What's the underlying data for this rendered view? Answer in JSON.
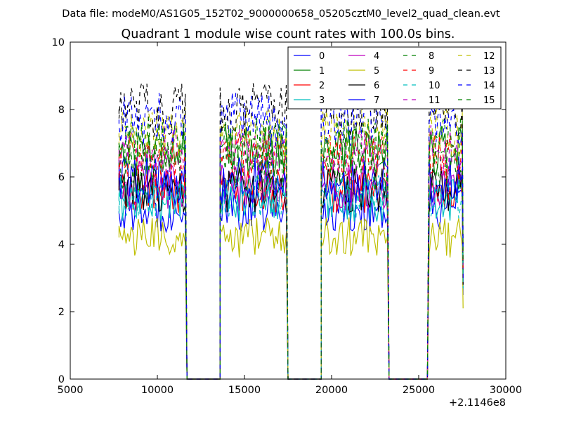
{
  "header": {
    "datafile_label": "Data file: modeM0/AS1G05_152T02_9000000658_05205cztM0_level2_quad_clean.evt"
  },
  "chart_data": {
    "type": "line",
    "title": "Quadrant 1 module wise count rates with 100.0s bins.",
    "xlabel": "",
    "ylabel": "",
    "x_offset_label": "+2.1146e8",
    "xlim": [
      5000,
      30000
    ],
    "ylim": [
      0,
      10
    ],
    "xticks": [
      5000,
      10000,
      15000,
      20000,
      25000,
      30000
    ],
    "xtick_labels": [
      "5000",
      "10000",
      "15000",
      "20000",
      "25000",
      "30000"
    ],
    "yticks": [
      0,
      2,
      4,
      6,
      8,
      10
    ],
    "ytick_labels": [
      "0",
      "2",
      "4",
      "6",
      "8",
      "10"
    ],
    "grid": false,
    "legend_position": "top-right",
    "legend_columns": 4,
    "bin_width": 100,
    "segments": [
      [
        7800,
        11600
      ],
      [
        13600,
        17400
      ],
      [
        19400,
        23200
      ],
      [
        25600,
        27500
      ]
    ],
    "gaps": [
      [
        11700,
        13600
      ],
      [
        17500,
        19400
      ],
      [
        23300,
        25500
      ]
    ],
    "series": [
      {
        "name": "0",
        "color": "#0000ff",
        "dash": "solid",
        "level": 5.0
      },
      {
        "name": "1",
        "color": "#008000",
        "dash": "solid",
        "level": 6.8
      },
      {
        "name": "2",
        "color": "#ff0000",
        "dash": "solid",
        "level": 5.6
      },
      {
        "name": "3",
        "color": "#00bfbf",
        "dash": "solid",
        "level": 5.3
      },
      {
        "name": "4",
        "color": "#bf00bf",
        "dash": "solid",
        "level": 5.7
      },
      {
        "name": "5",
        "color": "#bfbf00",
        "dash": "solid",
        "level": 4.2
      },
      {
        "name": "6",
        "color": "#000000",
        "dash": "solid",
        "level": 5.6
      },
      {
        "name": "7",
        "color": "#0000ff",
        "dash": "solid",
        "level": 5.9
      },
      {
        "name": "8",
        "color": "#008000",
        "dash": "dashed",
        "level": 6.3
      },
      {
        "name": "9",
        "color": "#ff0000",
        "dash": "dashed",
        "level": 6.6
      },
      {
        "name": "10",
        "color": "#00bfbf",
        "dash": "dashed",
        "level": 5.4
      },
      {
        "name": "11",
        "color": "#bf00bf",
        "dash": "dashed",
        "level": 6.8
      },
      {
        "name": "12",
        "color": "#bfbf00",
        "dash": "dashed",
        "level": 7.3
      },
      {
        "name": "13",
        "color": "#000000",
        "dash": "dashed",
        "level": 8.0
      },
      {
        "name": "14",
        "color": "#0000ff",
        "dash": "dashed",
        "level": 7.7
      },
      {
        "name": "15",
        "color": "#008000",
        "dash": "dashed",
        "level": 7.0
      }
    ]
  }
}
